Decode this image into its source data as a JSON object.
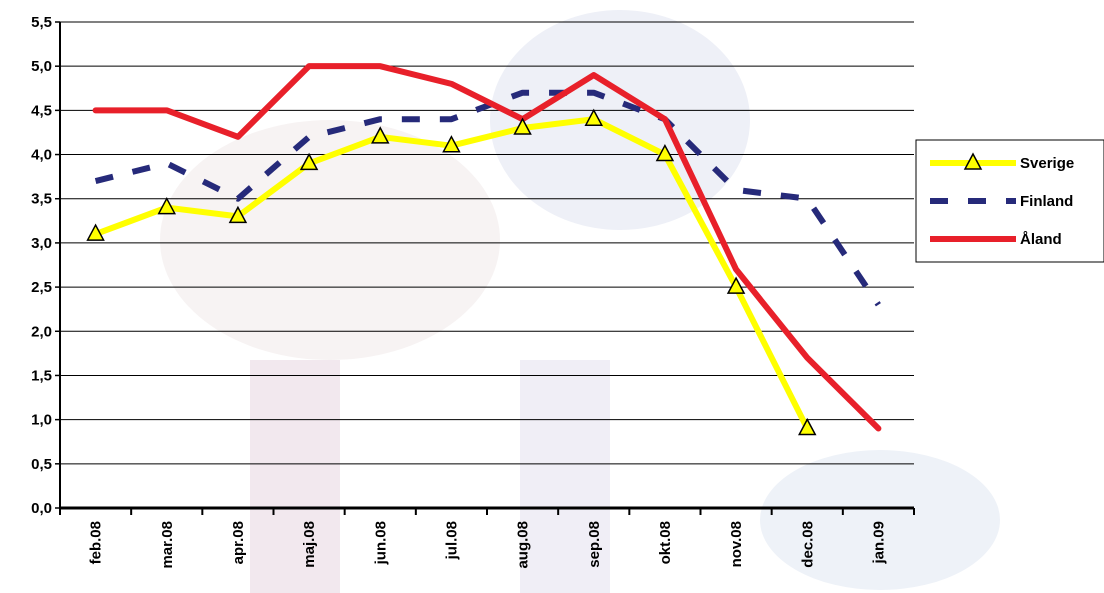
{
  "chart_data": {
    "type": "line",
    "categories": [
      "feb.08",
      "mar.08",
      "apr.08",
      "maj.08",
      "jun.08",
      "jul.08",
      "aug.08",
      "sep.08",
      "okt.08",
      "nov.08",
      "dec.08",
      "jan.09"
    ],
    "yticks": [
      "0,0",
      "0,5",
      "1,0",
      "1,5",
      "2,0",
      "2,5",
      "3,0",
      "3,5",
      "4,0",
      "4,5",
      "5,0",
      "5,5"
    ],
    "ylim": [
      0,
      5.5
    ],
    "grid": true,
    "legend_position": "right",
    "series": [
      {
        "name": "Sverige",
        "color": "#ffff00",
        "style": "solid-triangle-markers",
        "values": [
          3.1,
          3.4,
          3.3,
          3.9,
          4.2,
          4.1,
          4.3,
          4.4,
          4.0,
          2.5,
          0.9,
          null
        ]
      },
      {
        "name": "Finland",
        "color": "#262a7a",
        "style": "dashed",
        "values": [
          3.7,
          3.9,
          3.5,
          4.2,
          4.4,
          4.4,
          4.7,
          4.7,
          4.4,
          3.6,
          3.5,
          2.3
        ]
      },
      {
        "name": "Åland",
        "color": "#e8202a",
        "style": "solid",
        "values": [
          4.5,
          4.5,
          4.2,
          5.0,
          5.0,
          4.8,
          4.4,
          4.9,
          4.4,
          2.7,
          1.7,
          0.9
        ]
      }
    ]
  }
}
